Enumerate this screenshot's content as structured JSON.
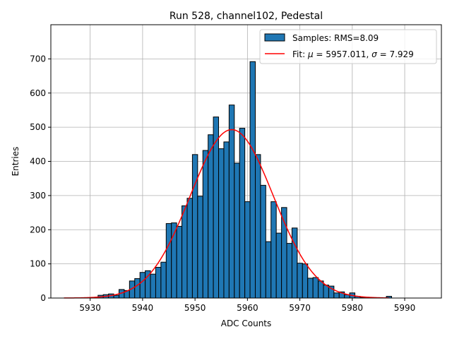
{
  "chart_data": {
    "type": "bar",
    "title": "Run 528, channel102, Pedestal",
    "xlabel": "ADC Counts",
    "ylabel": "Entries",
    "xlim": [
      5922.5,
      5997.0
    ],
    "ylim": [
      0,
      800
    ],
    "xticks": [
      5930,
      5940,
      5950,
      5960,
      5970,
      5980,
      5990
    ],
    "yticks": [
      0,
      100,
      200,
      300,
      400,
      500,
      600,
      700
    ],
    "grid": true,
    "legend_position": "top-right",
    "bin_width": 1,
    "colors": {
      "bars": "#1f77b4",
      "fit": "#ff0000",
      "edge": "#000000"
    },
    "series": [
      {
        "name": "Samples: RMS=8.09",
        "type": "histogram",
        "x": [
          5932,
          5933,
          5934,
          5935,
          5936,
          5937,
          5938,
          5939,
          5940,
          5941,
          5942,
          5943,
          5944,
          5945,
          5946,
          5947,
          5948,
          5949,
          5950,
          5951,
          5952,
          5953,
          5954,
          5955,
          5956,
          5957,
          5958,
          5959,
          5960,
          5961,
          5962,
          5963,
          5964,
          5965,
          5966,
          5967,
          5968,
          5969,
          5970,
          5971,
          5972,
          5973,
          5974,
          5975,
          5976,
          5977,
          5978,
          5979,
          5980,
          5981,
          5982,
          5983,
          5984,
          5985,
          5986,
          5987
        ],
        "values": [
          8,
          10,
          12,
          8,
          25,
          22,
          50,
          57,
          75,
          80,
          70,
          90,
          105,
          218,
          220,
          210,
          270,
          292,
          420,
          298,
          432,
          478,
          530,
          437,
          457,
          565,
          395,
          497,
          282,
          692,
          420,
          330,
          165,
          282,
          190,
          265,
          160,
          205,
          102,
          100,
          58,
          60,
          50,
          38,
          35,
          15,
          18,
          10,
          15,
          5,
          2,
          1,
          1,
          0,
          0,
          5
        ]
      },
      {
        "name": "Fit: $\\mu$ = 5957.011, $\\sigma$ = 7.929",
        "type": "gaussian",
        "mu": 5957.011,
        "sigma": 7.929,
        "amplitude": 493,
        "x_range": [
          5925,
          5987
        ]
      }
    ]
  }
}
